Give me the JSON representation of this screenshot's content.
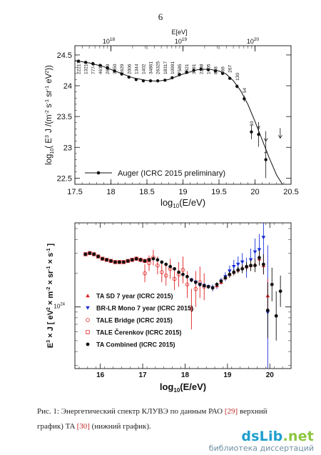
{
  "page": {
    "number": "6"
  },
  "chart_data": [
    {
      "type": "line",
      "title": "",
      "xlabel": "log10(E/eV)",
      "ylabel": "log10( E3 J /(m-2 s-1 sr-1 eV2))",
      "top_axis_label": "E[eV]",
      "top_axis_ticks": [
        {
          "base": "10",
          "exp": "18",
          "x": 18
        },
        {
          "base": "10",
          "exp": "19",
          "x": 19
        },
        {
          "base": "10",
          "exp": "20",
          "x": 20
        }
      ],
      "xlim": [
        17.5,
        20.5
      ],
      "ylim": [
        22.4,
        24.65
      ],
      "x_ticks": [
        "17.5",
        "18",
        "18.5",
        "19",
        "19.5",
        "20",
        "20.5"
      ],
      "y_ticks": [
        "22.5",
        "23",
        "23.5",
        "24",
        "24.5"
      ],
      "legend": {
        "label": "Auger (ICRC 2015 preliminary)",
        "placement": "bottom-left"
      },
      "series": [
        {
          "name": "Auger (ICRC 2015 preliminary)",
          "x": [
            17.55,
            17.65,
            17.75,
            17.85,
            17.95,
            18.05,
            18.15,
            18.25,
            18.35,
            18.45,
            18.55,
            18.65,
            18.75,
            18.85,
            18.95,
            19.05,
            19.15,
            19.25,
            19.35,
            19.45,
            19.55,
            19.65,
            19.75,
            19.85,
            19.95,
            20.05,
            20.15
          ],
          "y": [
            24.4,
            24.38,
            24.36,
            24.33,
            24.29,
            24.24,
            24.19,
            24.14,
            24.1,
            24.08,
            24.08,
            24.08,
            24.09,
            24.13,
            24.18,
            24.22,
            24.25,
            24.27,
            24.26,
            24.24,
            24.2,
            24.12,
            23.99,
            23.79,
            23.25,
            23.21,
            22.8
          ],
          "counts": [
            "22217",
            "13210",
            "7774",
            "4611",
            "2639",
            "3450",
            "2629",
            "2006",
            "1344",
            "1402",
            "34861",
            "26325",
            "18317",
            "10991",
            "7585",
            "5321",
            "3491",
            "2238",
            "1405",
            "888",
            "569",
            "267",
            "130",
            "54",
            "10",
            "4",
            "1"
          ],
          "yerr": [
            0.01,
            0.01,
            0.01,
            0.01,
            0.01,
            0.01,
            0.01,
            0.01,
            0.01,
            0.01,
            0.01,
            0.01,
            0.01,
            0.01,
            0.01,
            0.01,
            0.01,
            0.01,
            0.01,
            0.01,
            0.01,
            0.02,
            0.03,
            0.05,
            0.12,
            0.2,
            0.3
          ]
        }
      ],
      "fit_line": {
        "x": [
          17.5,
          17.7,
          17.9,
          18.1,
          18.3,
          18.5,
          18.65,
          18.8,
          19.0,
          19.2,
          19.35,
          19.5,
          19.6,
          19.7,
          19.8,
          19.9,
          20.0,
          20.1,
          20.2,
          20.3,
          20.38
        ],
        "y": [
          24.41,
          24.37,
          24.31,
          24.22,
          24.13,
          24.085,
          24.075,
          24.1,
          24.19,
          24.26,
          24.27,
          24.24,
          24.19,
          24.08,
          23.92,
          23.7,
          23.42,
          23.12,
          22.82,
          22.55,
          22.4
        ]
      },
      "upper_limits": [
        {
          "x": 20.15,
          "y": 23.1
        },
        {
          "x": 20.35,
          "y": 23.15
        }
      ]
    },
    {
      "type": "scatter",
      "title": "",
      "xlabel": "log10(E/eV)",
      "ylabel": "E3 × J [ eV2 × m-2 × sr-1 × s-1 ]",
      "log_y": true,
      "xlim": [
        15.4,
        20.5
      ],
      "ylim_log": [
        23.45,
        24.75
      ],
      "x_ticks": [
        "16",
        "17",
        "18",
        "19",
        "20"
      ],
      "y_tick_label": {
        "base": "10",
        "exp": "24",
        "value": 24
      },
      "legend_placement": "bottom-left",
      "series": [
        {
          "name": "TA Combined (ICRC 2015)",
          "marker": "filled-circle",
          "color": "#111111",
          "x": [
            15.65,
            15.75,
            15.85,
            15.95,
            16.05,
            16.15,
            16.25,
            16.35,
            16.45,
            16.55,
            16.65,
            16.75,
            16.85,
            16.95,
            17.05,
            17.15,
            17.25,
            17.35,
            17.45,
            17.55,
            17.65,
            17.75,
            17.85,
            17.95,
            18.05,
            18.15,
            18.25,
            18.35,
            18.45,
            18.55,
            18.65,
            18.75,
            18.85,
            18.95,
            19.05,
            19.15,
            19.25,
            19.35,
            19.45,
            19.55,
            19.65,
            19.75,
            19.85,
            19.95,
            20.05,
            20.15,
            20.25
          ],
          "y": [
            24.47,
            24.48,
            24.47,
            24.45,
            24.43,
            24.42,
            24.41,
            24.4,
            24.4,
            24.4,
            24.41,
            24.42,
            24.43,
            24.42,
            24.41,
            24.42,
            24.43,
            24.42,
            24.4,
            24.38,
            24.36,
            24.34,
            24.31,
            24.29,
            24.27,
            24.24,
            24.22,
            24.2,
            24.19,
            24.18,
            24.17,
            24.2,
            24.23,
            24.26,
            24.29,
            24.31,
            24.33,
            24.34,
            24.36,
            24.37,
            24.37,
            24.44,
            24.38,
            23.97,
            24.2,
            23.92,
            24.14
          ],
          "yerr": [
            0.01,
            0.01,
            0.01,
            0.01,
            0.01,
            0.01,
            0.01,
            0.01,
            0.01,
            0.01,
            0.01,
            0.01,
            0.01,
            0.01,
            0.01,
            0.01,
            0.01,
            0.01,
            0.01,
            0.01,
            0.01,
            0.01,
            0.01,
            0.01,
            0.01,
            0.01,
            0.01,
            0.01,
            0.01,
            0.01,
            0.02,
            0.02,
            0.02,
            0.02,
            0.03,
            0.03,
            0.03,
            0.04,
            0.04,
            0.05,
            0.06,
            0.07,
            0.09,
            0.25,
            0.15,
            0.22,
            0.14
          ]
        },
        {
          "name": "TA SD 7 year (ICRC 2015)",
          "marker": "filled-triangle-up",
          "color": "#e02020",
          "x": [
            18.75,
            18.85,
            18.95,
            19.05,
            19.15,
            19.25,
            19.35,
            19.45,
            19.55,
            19.65,
            19.75,
            19.85,
            19.95
          ],
          "y": [
            24.19,
            24.22,
            24.26,
            24.29,
            24.31,
            24.33,
            24.35,
            24.36,
            24.37,
            24.38,
            24.43,
            24.37,
            24.1
          ],
          "yerr": [
            0.01,
            0.01,
            0.01,
            0.01,
            0.02,
            0.02,
            0.02,
            0.03,
            0.04,
            0.05,
            0.06,
            0.08,
            0.15
          ]
        },
        {
          "name": "BR-LR Mono 7 year (ICRC 2015)",
          "marker": "filled-triangle-down",
          "color": "#1a2fd8",
          "x": [
            18.15,
            18.25,
            18.35,
            18.45,
            18.55,
            18.65,
            18.75,
            18.85,
            18.95,
            19.05,
            19.15,
            19.25,
            19.35,
            19.45,
            19.55,
            19.65,
            19.75,
            19.85,
            19.95
          ],
          "y": [
            24.24,
            24.22,
            24.2,
            24.19,
            24.18,
            24.17,
            24.19,
            24.23,
            24.27,
            24.32,
            24.36,
            24.38,
            24.4,
            24.35,
            24.42,
            24.49,
            24.51,
            24.62,
            23.95
          ],
          "yerr": [
            0.02,
            0.02,
            0.02,
            0.02,
            0.02,
            0.03,
            0.03,
            0.03,
            0.04,
            0.05,
            0.06,
            0.07,
            0.08,
            0.09,
            0.1,
            0.12,
            0.14,
            0.18,
            0.6
          ]
        },
        {
          "name": "TALE Bridge (ICRC 2015)",
          "marker": "open-circle",
          "color": "#e02020",
          "x": [
            17.05,
            17.15,
            17.25,
            17.35,
            17.45,
            17.55,
            17.65,
            17.75,
            17.85,
            17.95,
            18.05,
            18.15,
            18.25,
            18.35,
            18.45
          ],
          "y": [
            24.3,
            24.39,
            24.44,
            24.37,
            24.31,
            24.28,
            24.34,
            24.25,
            24.29,
            24.33,
            24.2,
            23.98,
            24.16,
            24.22,
            24.18
          ],
          "yerr": [
            0.08,
            0.07,
            0.07,
            0.08,
            0.09,
            0.09,
            0.09,
            0.1,
            0.11,
            0.12,
            0.12,
            0.18,
            0.16,
            0.14,
            0.12
          ]
        },
        {
          "name": "TALE Čerenkov (ICRC 2015)",
          "marker": "open-square",
          "color": "#e02020",
          "x": [
            15.65,
            15.75,
            15.85,
            15.95,
            16.05,
            16.15,
            16.25,
            16.35,
            16.45,
            16.55,
            16.65,
            16.75,
            16.85,
            16.95,
            17.05,
            17.15
          ],
          "y": [
            24.47,
            24.48,
            24.47,
            24.45,
            24.43,
            24.42,
            24.41,
            24.4,
            24.4,
            24.4,
            24.41,
            24.42,
            24.43,
            24.42,
            24.41,
            24.42
          ],
          "yerr": [
            0.01,
            0.01,
            0.01,
            0.01,
            0.01,
            0.01,
            0.01,
            0.01,
            0.01,
            0.01,
            0.01,
            0.01,
            0.02,
            0.02,
            0.02,
            0.02
          ]
        }
      ]
    }
  ],
  "caption": {
    "prefix": "Рис. 1: Энергетический спектр КЛУВЭ по данным РАО ",
    "ref1": "[29]",
    "middle": " верхний график) TA ",
    "ref2": "[30]",
    "suffix": " (нижний график)."
  },
  "watermark": {
    "brand": "dsLib",
    "tld": ".net",
    "subtitle": "библиотека диссертаций"
  }
}
